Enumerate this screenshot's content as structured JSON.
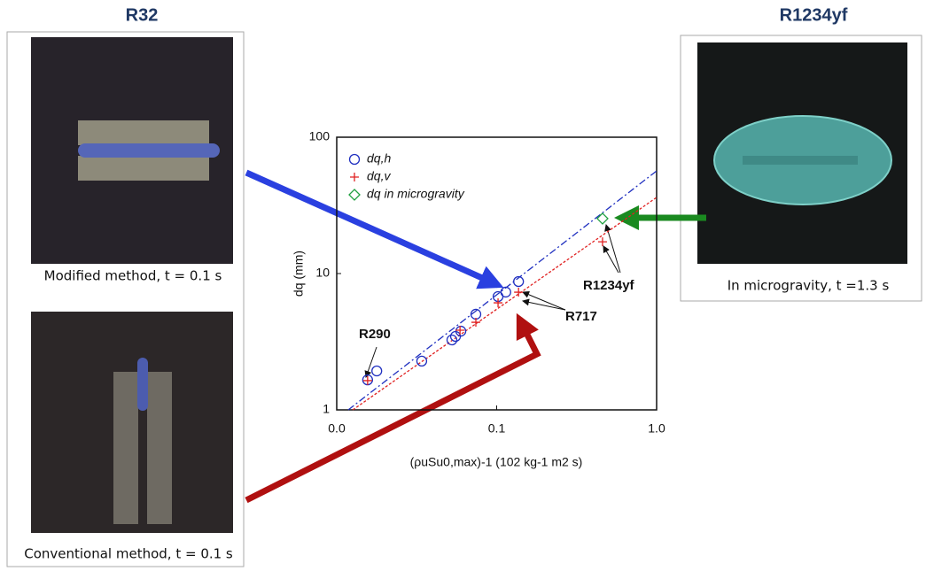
{
  "panels": {
    "left_title": "R32",
    "right_title": "R1234yf",
    "top_left_caption": "Modified method, t = 0.1 s",
    "bottom_left_caption": "Conventional method, t = 0.1 s",
    "right_caption": "In microgravity, t =1.3 s"
  },
  "chart_data": {
    "type": "scatter",
    "x_label": "(ρuSu0,max)-1 (102 kg-1 m2 s)",
    "y_label": "dq (mm)",
    "xlim": [
      0.01,
      1
    ],
    "ylim": [
      1,
      100
    ],
    "log_x": true,
    "log_y": true,
    "xticks": [
      {
        "value": 0.01,
        "label": "0.0"
      },
      {
        "value": 0.1,
        "label": "0.1"
      },
      {
        "value": 1,
        "label": "1.0"
      }
    ],
    "yticks": [
      1,
      10,
      100
    ],
    "legend": "top-left",
    "series": [
      {
        "name": "dq,h",
        "color": "#2030c0",
        "marker": "circle",
        "x": [
          0.0156,
          0.0178,
          0.034,
          0.0525,
          0.0553,
          0.0597,
          0.0741,
          0.102,
          0.114,
          0.137
        ],
        "values": [
          1.66,
          1.93,
          2.28,
          3.26,
          3.46,
          3.78,
          5.03,
          6.78,
          7.31,
          8.74
        ]
      },
      {
        "name": "dq,v",
        "color": "#e02020",
        "marker": "plus",
        "x": [
          0.0156,
          0.059,
          0.0741,
          0.102,
          0.137,
          0.459
        ],
        "values": [
          1.64,
          3.84,
          4.39,
          6.1,
          7.3,
          17.1
        ]
      },
      {
        "name": "dq in microgravity",
        "color": "#20a040",
        "marker": "diamond",
        "x": [
          0.459
        ],
        "values": [
          25.3
        ]
      }
    ],
    "lines": [
      {
        "color": "#2030c0",
        "dash": "8 3 2 3",
        "x": [
          0.0118,
          1
        ],
        "values": [
          1,
          56.6
        ]
      },
      {
        "color": "#e02020",
        "dash": "3 2",
        "x": [
          0.0126,
          1
        ],
        "values": [
          1,
          36.2
        ]
      }
    ],
    "annotations": [
      "R290",
      "R717",
      "R1234yf"
    ]
  }
}
